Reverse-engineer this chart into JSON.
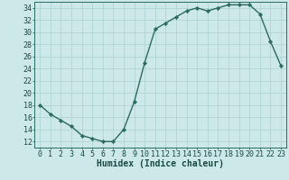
{
  "xlabel": "Humidex (Indice chaleur)",
  "ylabel": "",
  "x_values": [
    0,
    1,
    2,
    3,
    4,
    5,
    6,
    7,
    8,
    9,
    10,
    11,
    12,
    13,
    14,
    15,
    16,
    17,
    18,
    19,
    20,
    21,
    22,
    23
  ],
  "y_values": [
    18,
    16.5,
    15.5,
    14.5,
    13,
    12.5,
    12,
    12,
    14,
    18.5,
    25,
    30.5,
    31.5,
    32.5,
    33.5,
    34,
    33.5,
    34,
    34.5,
    34.5,
    34.5,
    33,
    28.5,
    24.5
  ],
  "ylim": [
    11,
    35
  ],
  "yticks": [
    12,
    14,
    16,
    18,
    20,
    22,
    24,
    26,
    28,
    30,
    32,
    34
  ],
  "xticks": [
    0,
    1,
    2,
    3,
    4,
    5,
    6,
    7,
    8,
    9,
    10,
    11,
    12,
    13,
    14,
    15,
    16,
    17,
    18,
    19,
    20,
    21,
    22,
    23
  ],
  "line_color": "#2d6b5e",
  "marker_color": "#2d6b5e",
  "bg_color": "#cce8e8",
  "grid_color": "#add0d0",
  "axis_color": "#2d6b5e",
  "text_color": "#1a4a40",
  "marker": "D",
  "marker_size": 2.2,
  "line_width": 1.0,
  "xlabel_fontsize": 7,
  "tick_fontsize": 6
}
